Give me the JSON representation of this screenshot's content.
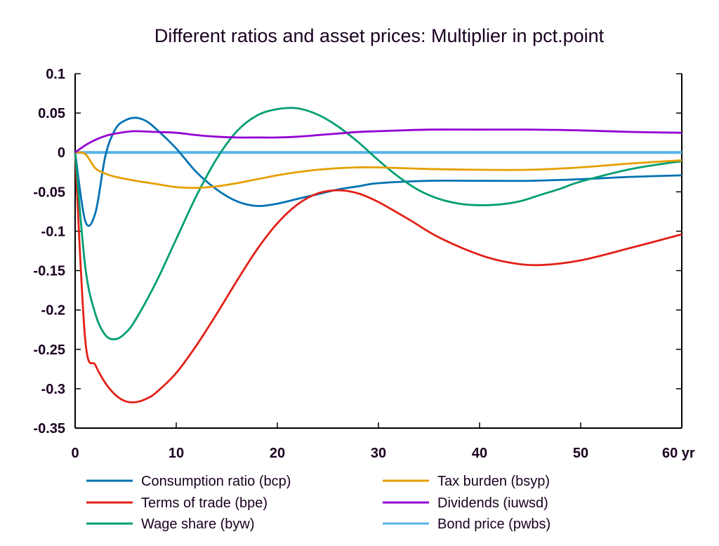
{
  "chart_data": {
    "type": "line",
    "title": "Different ratios and asset prices: Multiplier in pct.point",
    "xlabel": "",
    "ylabel": "",
    "x_unit_label": "yr",
    "xlim": [
      0,
      60
    ],
    "ylim": [
      -0.35,
      0.1
    ],
    "x_ticks": [
      0,
      10,
      20,
      30,
      40,
      50,
      60
    ],
    "x_tick_labels": [
      "0",
      "10",
      "20",
      "30",
      "40",
      "50",
      "60 yr"
    ],
    "y_ticks": [
      0.1,
      0.05,
      0,
      -0.05,
      -0.1,
      -0.15,
      -0.2,
      -0.25,
      -0.3,
      -0.35
    ],
    "y_tick_labels": [
      "0.1",
      "0.05",
      "0",
      "-0.05",
      "-0.1",
      "-0.15",
      "-0.2",
      "-0.25",
      "-0.3",
      "-0.35"
    ],
    "grid": false,
    "legend_position": "bottom",
    "series": [
      {
        "name": "Consumption ratio (bcp)",
        "color": "#0072b2",
        "x": [
          0,
          1,
          2,
          3,
          4,
          5,
          6,
          7,
          8,
          10,
          12,
          14,
          16,
          18,
          20,
          22,
          24,
          26,
          28,
          30,
          35,
          40,
          45,
          50,
          55,
          60
        ],
        "y": [
          0,
          -0.087,
          -0.077,
          -0.004,
          0.03,
          0.041,
          0.044,
          0.04,
          0.03,
          0.005,
          -0.025,
          -0.047,
          -0.062,
          -0.068,
          -0.065,
          -0.059,
          -0.053,
          -0.047,
          -0.043,
          -0.039,
          -0.036,
          -0.036,
          -0.036,
          -0.034,
          -0.031,
          -0.029
        ]
      },
      {
        "name": "Terms of trade (bpe)",
        "color": "#e32017",
        "x": [
          0,
          1,
          2,
          3,
          4,
          5,
          6,
          7,
          8,
          10,
          12,
          14,
          16,
          18,
          20,
          22,
          24,
          26,
          28,
          30,
          33,
          36,
          40,
          43,
          46,
          50,
          55,
          60
        ],
        "y": [
          0,
          -0.238,
          -0.27,
          -0.293,
          -0.308,
          -0.316,
          -0.317,
          -0.313,
          -0.305,
          -0.28,
          -0.245,
          -0.205,
          -0.163,
          -0.123,
          -0.09,
          -0.066,
          -0.052,
          -0.048,
          -0.052,
          -0.063,
          -0.085,
          -0.108,
          -0.13,
          -0.14,
          -0.143,
          -0.137,
          -0.121,
          -0.104
        ]
      },
      {
        "name": "Wage share (byw)",
        "color": "#009e73",
        "x": [
          0,
          1,
          2,
          3,
          4,
          5,
          6,
          8,
          10,
          12,
          14,
          16,
          18,
          20,
          22,
          24,
          26,
          28,
          30,
          32,
          34,
          36,
          38,
          40,
          42,
          44,
          46,
          48,
          50,
          55,
          60
        ],
        "y": [
          0,
          -0.145,
          -0.205,
          -0.232,
          -0.237,
          -0.229,
          -0.212,
          -0.165,
          -0.11,
          -0.055,
          -0.008,
          0.027,
          0.047,
          0.055,
          0.056,
          0.048,
          0.033,
          0.013,
          -0.01,
          -0.031,
          -0.048,
          -0.059,
          -0.065,
          -0.067,
          -0.066,
          -0.062,
          -0.054,
          -0.046,
          -0.037,
          -0.021,
          -0.011
        ]
      },
      {
        "name": "Tax burden (bsyp)",
        "color": "#e69f00",
        "x": [
          0,
          1,
          2,
          3,
          4,
          6,
          8,
          10,
          12,
          14,
          16,
          18,
          20,
          22,
          24,
          26,
          28,
          30,
          35,
          40,
          45,
          50,
          55,
          60
        ],
        "y": [
          0,
          -0.002,
          -0.02,
          -0.027,
          -0.031,
          -0.036,
          -0.04,
          -0.044,
          -0.045,
          -0.043,
          -0.039,
          -0.034,
          -0.029,
          -0.025,
          -0.022,
          -0.02,
          -0.019,
          -0.019,
          -0.021,
          -0.022,
          -0.022,
          -0.019,
          -0.014,
          -0.01
        ]
      },
      {
        "name": "Dividends (iuwsd)",
        "color": "#9400d3",
        "x": [
          0,
          1,
          2,
          3,
          4,
          5,
          6,
          8,
          10,
          12,
          14,
          16,
          18,
          20,
          22,
          24,
          26,
          28,
          30,
          35,
          40,
          45,
          50,
          55,
          60
        ],
        "y": [
          0,
          0.009,
          0.016,
          0.021,
          0.024,
          0.026,
          0.027,
          0.026,
          0.025,
          0.022,
          0.02,
          0.019,
          0.019,
          0.019,
          0.02,
          0.022,
          0.024,
          0.026,
          0.027,
          0.029,
          0.029,
          0.029,
          0.028,
          0.026,
          0.025
        ]
      },
      {
        "name": "Bond price (pwbs)",
        "color": "#56b4e9",
        "x": [
          0,
          60
        ],
        "y": [
          0,
          0
        ]
      }
    ]
  }
}
